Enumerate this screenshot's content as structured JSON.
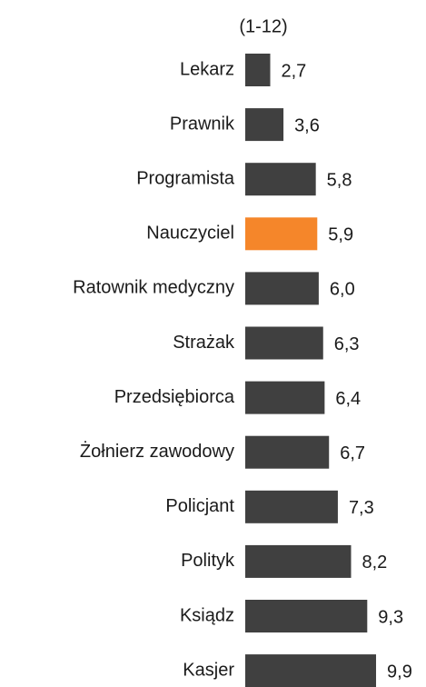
{
  "chart_data": {
    "type": "hbar",
    "title": "(1-12)",
    "categories": [
      "Lekarz",
      "Prawnik",
      "Programista",
      "Nauczyciel",
      "Ratownik medyczny",
      "Strażak",
      "Przedsiębiorca",
      "Żołnierz zawodowy",
      "Policjant",
      "Polityk",
      "Ksiądz",
      "Kasjer"
    ],
    "values": [
      2.7,
      3.6,
      5.8,
      5.9,
      6.0,
      6.3,
      6.4,
      6.7,
      7.3,
      8.2,
      9.3,
      9.9
    ],
    "value_labels": [
      "2,7",
      "3,6",
      "5,8",
      "5,9",
      "6,0",
      "6,3",
      "6,4",
      "6,7",
      "7,3",
      "8,2",
      "9,3",
      "9,9"
    ],
    "colors": [
      "#404040",
      "#404040",
      "#404040",
      "#f5862a",
      "#404040",
      "#404040",
      "#404040",
      "#404040",
      "#404040",
      "#404040",
      "#404040",
      "#404040"
    ],
    "xlim": [
      1,
      12
    ]
  }
}
